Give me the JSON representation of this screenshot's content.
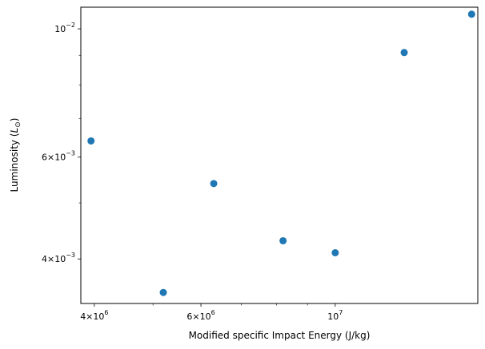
{
  "chart_data": {
    "type": "scatter",
    "title": "",
    "xlabel": "Modified specific Impact Energy (J/kg)",
    "ylabel_main": "Luminosity (",
    "ylabel_math": "L",
    "ylabel_sub": "⊙",
    "ylabel_close": ")",
    "xscale": "log",
    "yscale": "log",
    "xlim": [
      3800000,
      17200000
    ],
    "ylim": [
      0.00335,
      0.0109
    ],
    "grid": false,
    "marker_color": "#1f77b4",
    "points": [
      {
        "x": 3950000,
        "y": 0.0064
      },
      {
        "x": 5200000,
        "y": 0.0035
      },
      {
        "x": 6300000,
        "y": 0.0054
      },
      {
        "x": 8200000,
        "y": 0.0043
      },
      {
        "x": 10000000,
        "y": 0.0041
      },
      {
        "x": 13000000,
        "y": 0.0091
      },
      {
        "x": 16800000,
        "y": 0.0106
      }
    ],
    "x_major_ticks": [
      {
        "value": 4000000,
        "base": "4×10",
        "exp": "6"
      },
      {
        "value": 6000000,
        "base": "6×10",
        "exp": "6"
      },
      {
        "value": 10000000,
        "base": "10",
        "exp": "7"
      }
    ],
    "x_minor_ticks": [
      5000000,
      7000000,
      8000000,
      9000000
    ],
    "y_major_ticks": [
      {
        "value": 0.004,
        "base": "4×10",
        "exp": "−3"
      },
      {
        "value": 0.006,
        "base": "6×10",
        "exp": "−3"
      },
      {
        "value": 0.01,
        "base": "10",
        "exp": "−2"
      }
    ],
    "y_minor_ticks": [
      0.005,
      0.007,
      0.008,
      0.009
    ]
  }
}
